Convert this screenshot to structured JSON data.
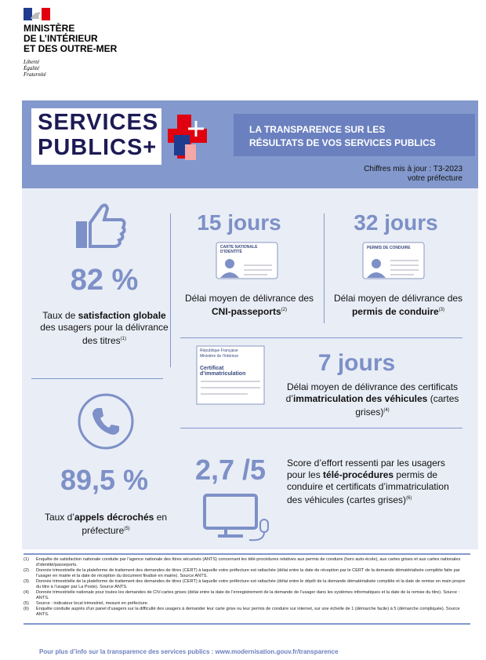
{
  "header": {
    "ministry": [
      "MINISTÈRE",
      "DE L’INTÉRIEUR",
      "ET DES OUTRE-MER"
    ],
    "motto": [
      "Liberté",
      "Égalité",
      "Fraternité"
    ]
  },
  "banner": {
    "brand": [
      "SERVICES",
      "PUBLICS+"
    ],
    "tagline": [
      "LA TRANSPARENCE SUR LES",
      "RÉSULTATS DE VOS SERVICES PUBLICS"
    ],
    "update": "Chiffres mis à jour : T3-2023",
    "scope": "votre préfecture"
  },
  "cards": {
    "cni": "CARTE NATIONALE D’IDENTITÉ",
    "permis": "PERMIS DE CONDUIRE",
    "rf": "République Française",
    "ministry": "Ministère de l’Intérieur",
    "certificate": "Certificat d’immatriculation"
  },
  "stats": [
    {
      "value": "82 %",
      "desc": [
        {
          "text": "Taux de ",
          "bold": false
        },
        {
          "text": "satisfaction globale",
          "bold": true
        },
        {
          "text": " des usagers pour la délivrance des titres",
          "bold": false
        }
      ],
      "note": "(1)"
    },
    {
      "value": "15 jours",
      "desc": [
        {
          "text": "Délai moyen de délivrance des ",
          "bold": false
        },
        {
          "text": "CNI-passeports",
          "bold": true
        }
      ],
      "note": "(2)"
    },
    {
      "value": "32 jours",
      "desc": [
        {
          "text": "Délai moyen de délivrance des ",
          "bold": false
        },
        {
          "text": "permis de conduire",
          "bold": true
        }
      ],
      "note": "(3)"
    },
    {
      "value": "7 jours",
      "desc": [
        {
          "text": "Délai moyen de délivrance des certificats d’",
          "bold": false
        },
        {
          "text": "immatriculation des véhicules",
          "bold": true
        },
        {
          "text": " (cartes grises)",
          "bold": false
        }
      ],
      "note": "(4)"
    },
    {
      "value": "89,5 %",
      "desc": [
        {
          "text": "Taux d’",
          "bold": false
        },
        {
          "text": "appels décrochés",
          "bold": true
        },
        {
          "text": " en préfecture",
          "bold": false
        }
      ],
      "note": "(5)"
    },
    {
      "value": "2,7 /5",
      "desc": [
        {
          "text": "Score d’effort ressenti par les usagers pour les ",
          "bold": false
        },
        {
          "text": "télé-procédures",
          "bold": true
        },
        {
          "text": " permis de conduire et certificats d’immatriculation des véhicules (cartes grises)",
          "bold": false
        }
      ],
      "note": "(6)"
    }
  ],
  "footnotes": [
    {
      "marker": "(1)",
      "text": "Enquête de satisfaction nationale conduite par l’agence nationale des titres sécurisés (ANTS) concernant les télé-procédures relatives aux permis de conduire (hors auto-école), aux cartes grises et aux cartes nationales d’identité/passeports."
    },
    {
      "marker": "(2)",
      "text": "Donnée trimestrielle de la plateforme de traitement des demandes de titres (CERT) à laquelle votre préfecture est rattachée (délai entre la date de réception par le CERT de la demande dématérialisée complète faite par l’usager en mairie et la date de réception du document finalisé en mairie). Source ANTS."
    },
    {
      "marker": "(3)",
      "text": "Donnée trimestrielle de la plateforme de traitement des demandes de titres (CERT) à laquelle votre préfecture est rattachée (délai entre le dépôt de la demande dématérialisée complète et la date de remise en main propre du titre à l’usager par La Poste). Source ANTS."
    },
    {
      "marker": "(4)",
      "text": "Donnée trimestrielle nationale pour toutes les demandes de CIV-cartes grises (délai entre la date de l’enregistrement de la demande de l’usager dans les systèmes informatiques et la date de la remise du titre). Source : ANTS."
    },
    {
      "marker": "(5)",
      "text": "Source : indicateur local trimestriel, mesuré en préfecture."
    },
    {
      "marker": "(6)",
      "text": "Enquête conduite auprès d’un panel d’usagers sur la difficulté des usagers à demander leur carte grise ou leur permis de conduire sur internet, sur une échelle de 1 (démarche facile) à 5 (démarche compliquée). Source ANTS."
    }
  ],
  "footer": "Pour plus d’info sur la transparence des services publics : www.modernisation.gouv.fr/transparence"
}
